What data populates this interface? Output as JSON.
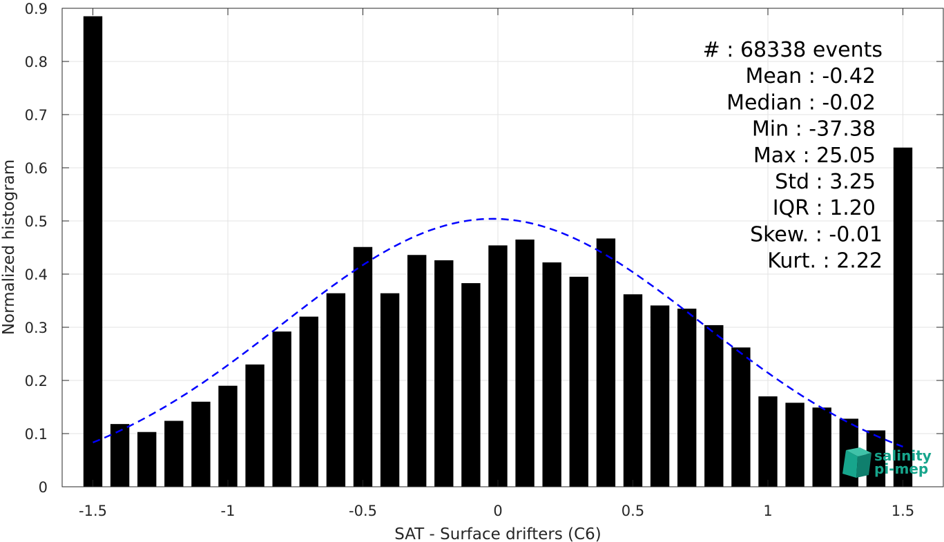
{
  "chart_data": {
    "type": "bar",
    "xlabel": "SAT - Surface drifters (C6)",
    "ylabel": "Normalized histogram",
    "xlim": [
      -1.6,
      1.6
    ],
    "ylim": [
      0,
      0.9
    ],
    "grid": true,
    "xticks": [
      -1.5,
      -1,
      -0.5,
      0,
      0.5,
      1,
      1.5
    ],
    "xtick_labels": [
      "-1.5",
      "-1",
      "-0.5",
      "0",
      "0.5",
      "1",
      "1.5"
    ],
    "yticks": [
      0,
      0.1,
      0.2,
      0.3,
      0.4,
      0.5,
      0.6,
      0.7,
      0.8,
      0.9
    ],
    "ytick_labels": [
      "0",
      "0.1",
      "0.2",
      "0.3",
      "0.4",
      "0.5",
      "0.6",
      "0.7",
      "0.8",
      "0.9"
    ],
    "bar_color": "#000000",
    "bins": [
      {
        "x": -1.5,
        "value": 0.885
      },
      {
        "x": -1.4,
        "value": 0.118
      },
      {
        "x": -1.3,
        "value": 0.103
      },
      {
        "x": -1.2,
        "value": 0.124
      },
      {
        "x": -1.1,
        "value": 0.16
      },
      {
        "x": -1.0,
        "value": 0.19
      },
      {
        "x": -0.9,
        "value": 0.23
      },
      {
        "x": -0.8,
        "value": 0.292
      },
      {
        "x": -0.7,
        "value": 0.32
      },
      {
        "x": -0.6,
        "value": 0.364
      },
      {
        "x": -0.5,
        "value": 0.451
      },
      {
        "x": -0.4,
        "value": 0.364
      },
      {
        "x": -0.3,
        "value": 0.436
      },
      {
        "x": -0.2,
        "value": 0.426
      },
      {
        "x": -0.1,
        "value": 0.383
      },
      {
        "x": 0.0,
        "value": 0.454
      },
      {
        "x": 0.1,
        "value": 0.465
      },
      {
        "x": 0.2,
        "value": 0.422
      },
      {
        "x": 0.3,
        "value": 0.395
      },
      {
        "x": 0.4,
        "value": 0.467
      },
      {
        "x": 0.5,
        "value": 0.362
      },
      {
        "x": 0.6,
        "value": 0.341
      },
      {
        "x": 0.7,
        "value": 0.335
      },
      {
        "x": 0.8,
        "value": 0.304
      },
      {
        "x": 0.9,
        "value": 0.262
      },
      {
        "x": 1.0,
        "value": 0.17
      },
      {
        "x": 1.1,
        "value": 0.158
      },
      {
        "x": 1.2,
        "value": 0.149
      },
      {
        "x": 1.3,
        "value": 0.128
      },
      {
        "x": 1.4,
        "value": 0.106
      },
      {
        "x": 1.5,
        "value": 0.638
      }
    ],
    "fit_curve": {
      "style": "dashed",
      "color": "#0000ff",
      "x_range": [
        -1.5,
        1.5
      ],
      "mean": -0.02,
      "peak": 0.504,
      "sigma": 0.78
    },
    "stats": [
      "#  : 68338 events",
      "Mean : -0.42",
      "Median : -0.02",
      "Min : -37.38",
      "Max : 25.05",
      "Std : 3.25",
      "IQR : 1.20",
      "Skew. : -0.01",
      "Kurt. : 2.22"
    ]
  },
  "logo": {
    "line1": "salinity",
    "line2": "pi-mep",
    "color": "#17a58c"
  }
}
